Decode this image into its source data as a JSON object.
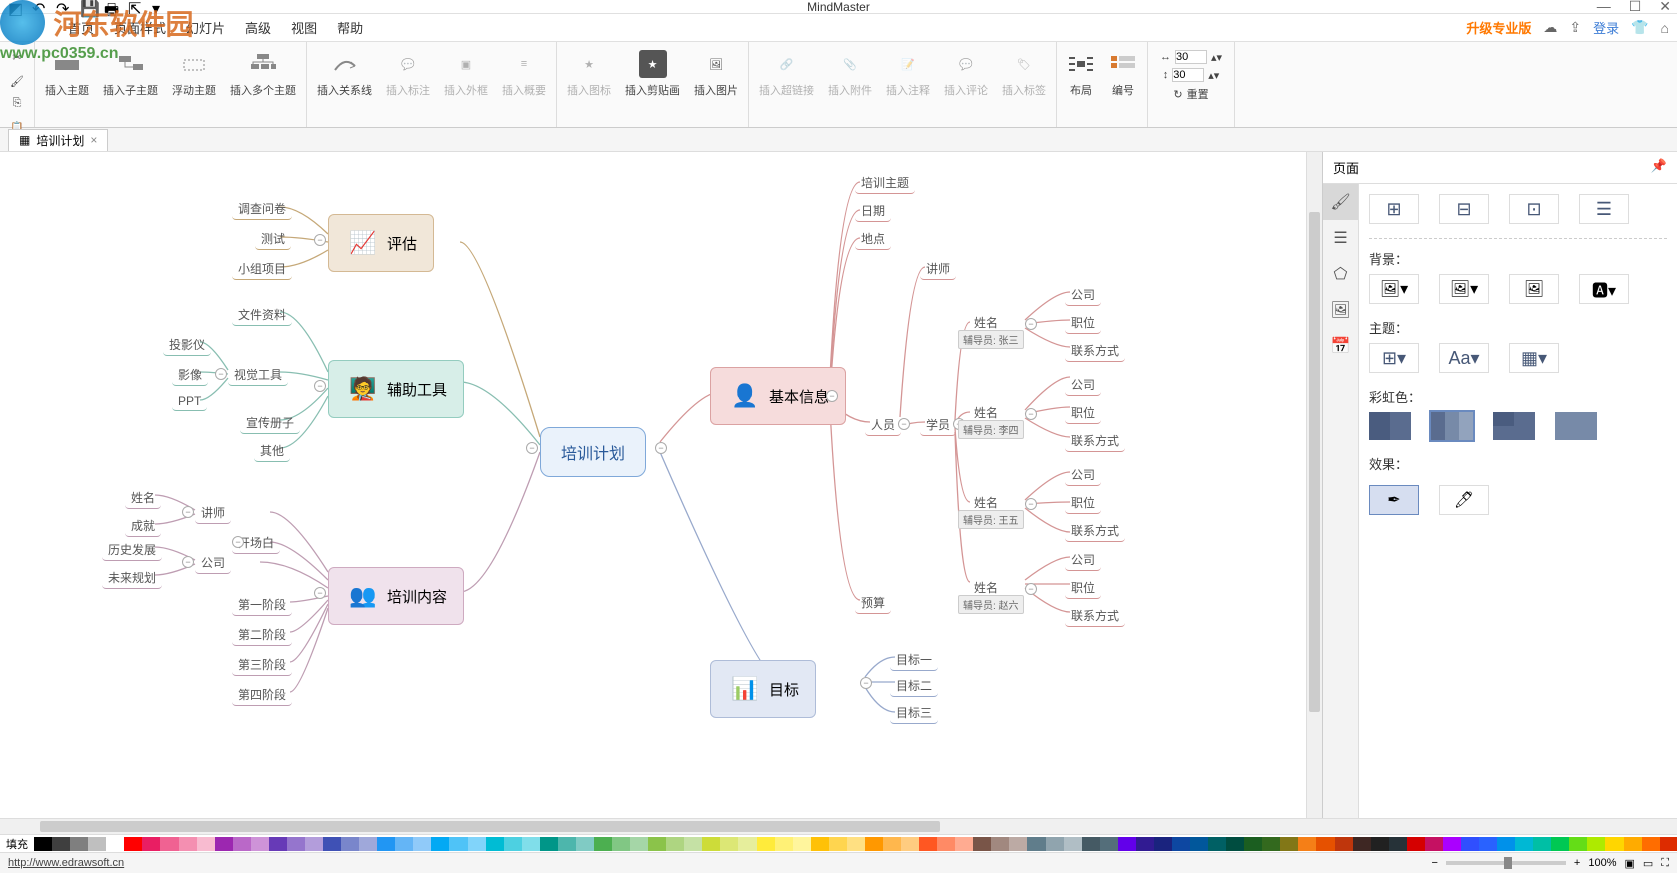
{
  "watermark": {
    "name": "河东软件园",
    "url": "www.pc0359.cn"
  },
  "app": {
    "title": "MindMaster"
  },
  "menuTabs": [
    "首页",
    "页面样式",
    "幻灯片",
    "高级",
    "视图",
    "帮助"
  ],
  "rightMenu": {
    "upgrade": "升级专业版",
    "login": "登录"
  },
  "ribbon": {
    "clipboard": {
      "cut": "剪切",
      "copy": "复制",
      "paste": "粘贴"
    },
    "topic": {
      "insert": "插入主题",
      "insertSub": "插入子主题",
      "float": "浮动主题",
      "multi": "插入多个主题"
    },
    "link": {
      "relation": "插入关系线",
      "callout": "插入标注",
      "boundary": "插入外框",
      "summary": "插入概要"
    },
    "attach": {
      "iconMark": "插入图标",
      "clipart": "插入剪贴画",
      "image": "插入图片"
    },
    "more": {
      "hyperlink": "插入超链接",
      "attachment": "插入附件",
      "note": "插入注释",
      "comment": "插入评论",
      "tag": "插入标签"
    },
    "layout": {
      "layout": "布局",
      "number": "编号"
    },
    "size": {
      "w": "30",
      "h": "30",
      "reset": "重置"
    }
  },
  "docTab": {
    "name": "培训计划"
  },
  "rightPanel": {
    "title": "页面",
    "bg": "背景：",
    "theme": "主题：",
    "rainbow": "彩虹色：",
    "effect": "效果："
  },
  "colorbar": {
    "label": "填充"
  },
  "status": {
    "link": "http://www.edrawsoft.cn",
    "zoom": "100%"
  },
  "mindmap": {
    "central": "培训计划",
    "branches": {
      "basic": {
        "label": "基本信息",
        "bg": "#f6dcdc",
        "border": "#dba2a2",
        "linkColor": "#d49595",
        "children": {
          "topic": "培训主题",
          "date": "日期",
          "place": "地点",
          "people": {
            "label": "人员",
            "teacher": "讲师",
            "student": "学员",
            "persons": [
              {
                "name": "姓名",
                "tag": "辅导员: 张三",
                "company": "公司",
                "position": "职位",
                "contact": "联系方式"
              },
              {
                "name": "姓名",
                "tag": "辅导员: 李四",
                "company": "公司",
                "position": "职位",
                "contact": "联系方式"
              },
              {
                "name": "姓名",
                "tag": "辅导员: 王五",
                "company": "公司",
                "position": "职位",
                "contact": "联系方式"
              },
              {
                "name": "姓名",
                "tag": "辅导员: 赵六",
                "company": "公司",
                "position": "职位",
                "contact": "联系方式"
              }
            ]
          },
          "budget": "预算"
        }
      },
      "goal": {
        "label": "目标",
        "bg": "#e2e8f4",
        "border": "#aebcd8",
        "linkColor": "#98a9cc",
        "children": {
          "g1": "目标一",
          "g2": "目标二",
          "g3": "目标三"
        }
      },
      "eval": {
        "label": "评估",
        "bg": "#f1e7d9",
        "border": "#d4b994",
        "linkColor": "#c5a878",
        "children": {
          "survey": "调查问卷",
          "test": "测试",
          "group": "小组项目"
        }
      },
      "tools": {
        "label": "辅助工具",
        "bg": "#d7eee8",
        "border": "#94ccbf",
        "linkColor": "#88beb1",
        "children": {
          "doc": "文件资料",
          "visual": {
            "label": "视觉工具",
            "items": {
              "proj": "投影仪",
              "video": "影像",
              "ppt": "PPT"
            }
          },
          "brochure": "宣传册子",
          "other": "其他"
        }
      },
      "content": {
        "label": "培训内容",
        "bg": "#f0e2ec",
        "border": "#ceaac0",
        "linkColor": "#be9db2",
        "children": {
          "teacher": {
            "label": "讲师",
            "name": "姓名",
            "ach": "成就"
          },
          "opening": "开场白",
          "company": {
            "label": "公司",
            "hist": "历史发展",
            "future": "未来规划"
          },
          "p1": "第一阶段",
          "p2": "第二阶段",
          "p3": "第三阶段",
          "p4": "第四阶段"
        }
      }
    }
  },
  "palette": [
    "#000000",
    "#3f3f3f",
    "#7f7f7f",
    "#bfbfbf",
    "#ffffff",
    "#ff0000",
    "#e91e63",
    "#f06292",
    "#f48fb1",
    "#f8bbd0",
    "#9c27b0",
    "#ba68c8",
    "#ce93d8",
    "#673ab7",
    "#9575cd",
    "#b39ddb",
    "#3f51b5",
    "#7986cb",
    "#9fa8da",
    "#2196f3",
    "#64b5f6",
    "#90caf9",
    "#03a9f4",
    "#4fc3f7",
    "#81d4fa",
    "#00bcd4",
    "#4dd0e1",
    "#80deea",
    "#009688",
    "#4db6ac",
    "#80cbc4",
    "#4caf50",
    "#81c784",
    "#a5d6a7",
    "#8bc34a",
    "#aed581",
    "#c5e1a5",
    "#cddc39",
    "#dce775",
    "#e6ee9c",
    "#ffeb3b",
    "#fff176",
    "#fff59d",
    "#ffc107",
    "#ffd54f",
    "#ffe082",
    "#ff9800",
    "#ffb74d",
    "#ffcc80",
    "#ff5722",
    "#ff8a65",
    "#ffab91",
    "#795548",
    "#a1887f",
    "#bcaaa4",
    "#607d8b",
    "#90a4ae",
    "#b0bec5",
    "#455a64",
    "#546e7a",
    "#6200ea",
    "#311b92",
    "#1a237e",
    "#0d47a1",
    "#01579b",
    "#006064",
    "#004d40",
    "#1b5e20",
    "#33691e",
    "#827717",
    "#f57f17",
    "#e65100",
    "#bf360c",
    "#3e2723",
    "#212121",
    "#263238",
    "#d50000",
    "#c51162",
    "#aa00ff",
    "#304ffe",
    "#2962ff",
    "#0091ea",
    "#00b8d4",
    "#00bfa5",
    "#00c853",
    "#64dd17",
    "#aeea00",
    "#ffd600",
    "#ffab00",
    "#ff6d00",
    "#dd2c00"
  ]
}
